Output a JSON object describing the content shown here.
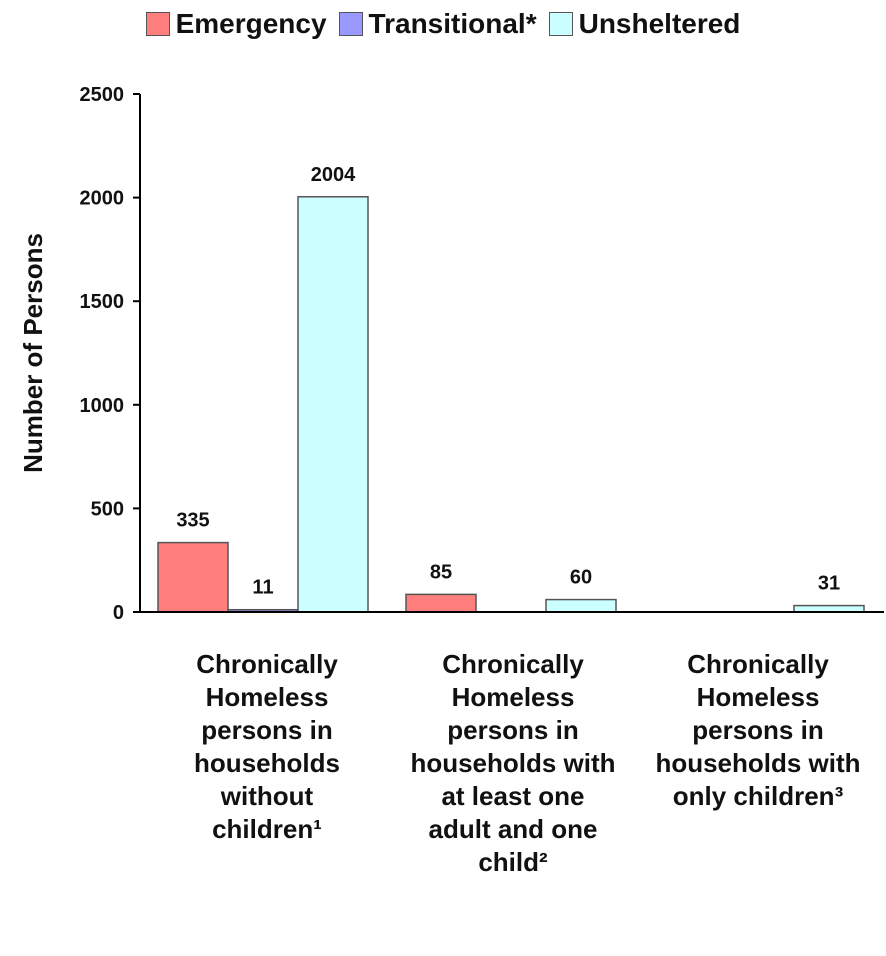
{
  "chart_data": {
    "type": "bar",
    "ylabel": "Number of Persons",
    "ylim": [
      0,
      2500
    ],
    "yticks": [
      "0",
      "500",
      "1000",
      "1500",
      "2000",
      "2500"
    ],
    "grid": false,
    "legend_position": "top",
    "categories": [
      "Chronically\nHomeless\npersons in\nhouseholds\nwithout\nchildren¹",
      "Chronically\nHomeless\npersons in\nhouseholds with\nat least one\nadult and one\nchild²",
      "Chronically\nHomeless\npersons in\nhouseholds with\nonly children³"
    ],
    "series": [
      {
        "name": "Emergency",
        "color": "#ff7f7f",
        "values": [
          335,
          85,
          null
        ],
        "labels": [
          "335",
          "85",
          ""
        ]
      },
      {
        "name": "Transitional*",
        "color": "#9999ff",
        "values": [
          11,
          null,
          null
        ],
        "labels": [
          "11",
          "",
          ""
        ]
      },
      {
        "name": "Unsheltered",
        "color": "#ccffff",
        "values": [
          2004,
          60,
          31
        ],
        "labels": [
          "2004",
          "60",
          "31"
        ]
      }
    ]
  }
}
